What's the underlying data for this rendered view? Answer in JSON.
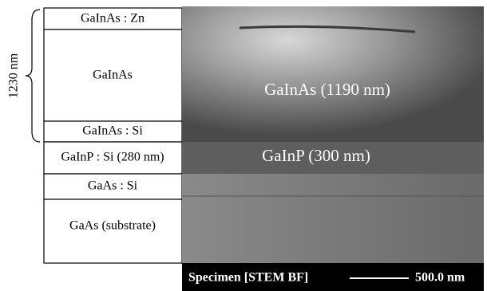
{
  "layers": [
    "GaInAs : Zn",
    "GaInAs",
    "GaInAs : Si",
    "GaInP : Si (280 nm)",
    "GaAs : Si",
    "GaAs (substrate)"
  ],
  "bracket_label": "1230 nm",
  "image": {
    "labels": [
      "GaInAs (1190 nm)",
      "GaInP (300 nm)"
    ],
    "caption": "Specimen [STEM BF]",
    "scale_bar": "500.0 nm"
  }
}
